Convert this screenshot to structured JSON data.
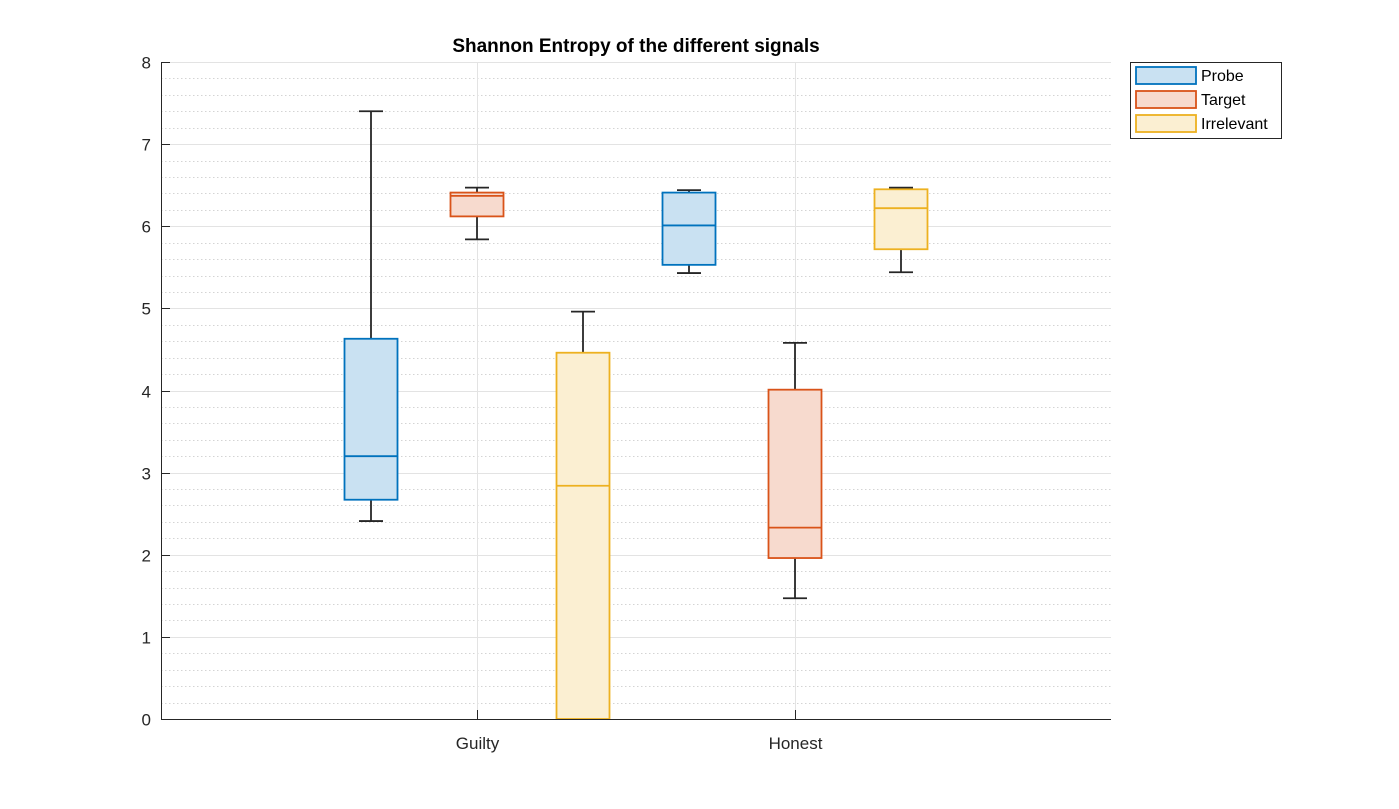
{
  "chart_data": {
    "type": "box",
    "title": "Shannon Entropy of the different signals",
    "xlabel": "",
    "ylabel": "",
    "ylim": [
      0,
      8
    ],
    "yticks": [
      0,
      1,
      2,
      3,
      4,
      5,
      6,
      7,
      8
    ],
    "ytick_labels": [
      "0",
      "1",
      "2",
      "3",
      "4",
      "5",
      "6",
      "7",
      "8"
    ],
    "categories": [
      "Guilty",
      "Honest"
    ],
    "grid": "major and minor",
    "legend_position": "outside top-right",
    "series": [
      {
        "name": "Probe",
        "color": "#0072BD",
        "fill": "#C9E1F2",
        "boxes": [
          {
            "category": "Guilty",
            "whisker_low": 2.41,
            "q1": 2.67,
            "median": 3.2,
            "q3": 4.63,
            "whisker_high": 7.4
          },
          {
            "category": "Honest",
            "whisker_low": 5.43,
            "q1": 5.53,
            "median": 6.01,
            "q3": 6.41,
            "whisker_high": 6.44
          }
        ]
      },
      {
        "name": "Target",
        "color": "#D95319",
        "fill": "#F7DACE",
        "boxes": [
          {
            "category": "Guilty",
            "whisker_low": 5.84,
            "q1": 6.12,
            "median": 6.37,
            "q3": 6.41,
            "whisker_high": 6.47
          },
          {
            "category": "Honest",
            "whisker_low": 1.47,
            "q1": 1.96,
            "median": 2.33,
            "q3": 4.01,
            "whisker_high": 4.58
          }
        ]
      },
      {
        "name": "Irrelevant",
        "color": "#EDB120",
        "fill": "#FBEFD2",
        "boxes": [
          {
            "category": "Guilty",
            "whisker_low": 0.0,
            "q1": 0.0,
            "median": 2.84,
            "q3": 4.46,
            "whisker_high": 4.96
          },
          {
            "category": "Honest",
            "whisker_low": 5.44,
            "q1": 5.72,
            "median": 6.22,
            "q3": 6.45,
            "whisker_high": 6.47
          }
        ]
      }
    ]
  }
}
